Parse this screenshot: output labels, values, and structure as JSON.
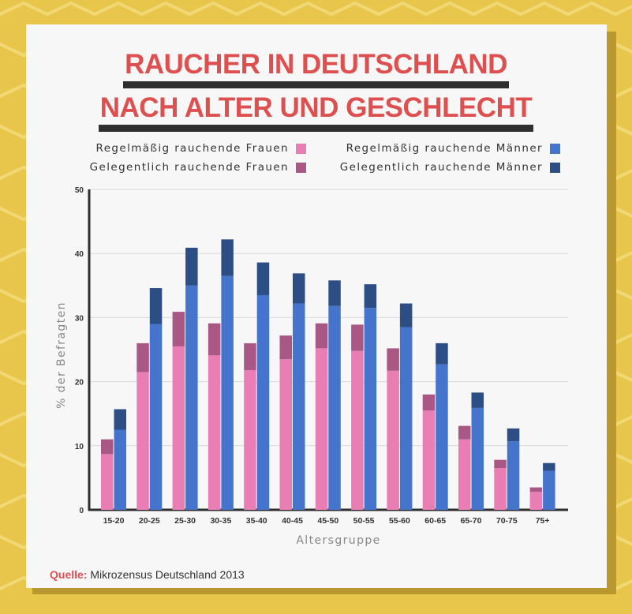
{
  "title": {
    "line1": "RAUCHER IN DEUTSCHLAND",
    "line2": "NACH ALTER UND GESCHLECHT"
  },
  "colors": {
    "background": "#e8c64c",
    "title": "#de5050",
    "women_regular": "#e87eb3",
    "women_occasional": "#a95784",
    "men_regular": "#4474cc",
    "men_occasional": "#2d4e84"
  },
  "legend": [
    {
      "label": "Regelmäßig rauchende Frauen",
      "color": "#e87eb3"
    },
    {
      "label": "Regelmäßig rauchende Männer",
      "color": "#4474cc"
    },
    {
      "label": "Gelegentlich rauchende Frauen",
      "color": "#a95784"
    },
    {
      "label": "Gelegentlich rauchende Männer",
      "color": "#2d4e84"
    }
  ],
  "chart_data": {
    "type": "bar",
    "stacked": true,
    "grouped": true,
    "xlabel": "Altersgruppe",
    "ylabel": "% der Befragten",
    "ylim": [
      0,
      50
    ],
    "yticks": [
      0,
      10,
      20,
      30,
      40,
      50
    ],
    "grid": true,
    "categories": [
      "15-20",
      "20-25",
      "25-30",
      "30-35",
      "35-40",
      "40-45",
      "45-50",
      "50-55",
      "55-60",
      "60-65",
      "65-70",
      "70-75",
      "75+"
    ],
    "series": [
      {
        "name": "Regelmäßig rauchende Frauen",
        "group": "Frauen",
        "values": [
          8.7,
          21.5,
          25.5,
          24.1,
          21.8,
          23.5,
          25.2,
          24.8,
          21.7,
          15.5,
          11.0,
          6.5,
          2.8
        ]
      },
      {
        "name": "Gelegentlich rauchende Frauen",
        "group": "Frauen",
        "values": [
          2.3,
          4.5,
          5.4,
          5.0,
          4.2,
          3.7,
          3.9,
          4.1,
          3.5,
          2.5,
          2.1,
          1.3,
          0.7
        ]
      },
      {
        "name": "Regelmäßig rauchende Männer",
        "group": "Männer",
        "values": [
          12.5,
          29.0,
          35.0,
          36.5,
          33.5,
          32.2,
          31.8,
          31.5,
          28.5,
          22.7,
          15.9,
          10.7,
          6.1
        ]
      },
      {
        "name": "Gelegentlich rauchende Männer",
        "group": "Männer",
        "values": [
          3.2,
          5.6,
          5.9,
          5.7,
          5.1,
          4.7,
          4.0,
          3.7,
          3.7,
          3.3,
          2.4,
          2.0,
          1.2
        ]
      }
    ]
  },
  "source": {
    "label": "Quelle:",
    "text": "Mikrozensus Deutschland 2013"
  }
}
